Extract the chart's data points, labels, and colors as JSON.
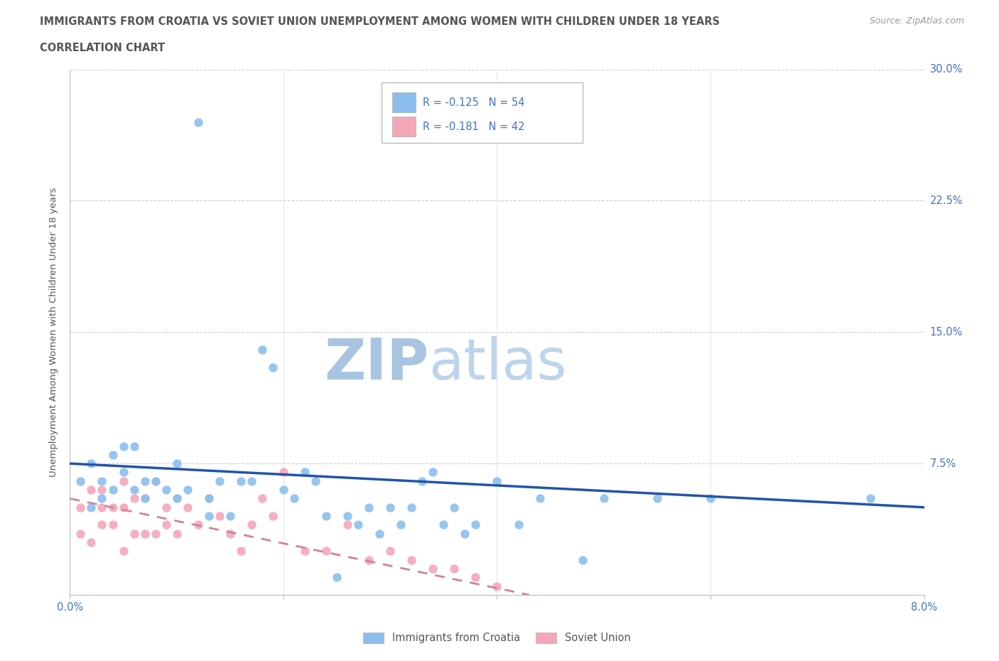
{
  "title_line1": "IMMIGRANTS FROM CROATIA VS SOVIET UNION UNEMPLOYMENT AMONG WOMEN WITH CHILDREN UNDER 18 YEARS",
  "title_line2": "CORRELATION CHART",
  "source": "Source: ZipAtlas.com",
  "ylabel": "Unemployment Among Women with Children Under 18 years",
  "croatia_color": "#8BBFED",
  "soviet_color": "#F4A7B9",
  "trendline_croatia_color": "#2255AA",
  "trendline_soviet_color": "#D4809A",
  "legend_label_croatia": "R = -0.125   N = 54",
  "legend_label_soviet": "R = -0.181   N = 42",
  "legend_label_bottom_croatia": "Immigrants from Croatia",
  "legend_label_bottom_soviet": "Soviet Union",
  "watermark_zip": "ZIP",
  "watermark_atlas": "atlas",
  "watermark_color": "#C8D8EE",
  "background_color": "#FFFFFF",
  "title_color": "#555555",
  "axis_color": "#4472C4",
  "xlim": [
    0.0,
    0.08
  ],
  "ylim": [
    0.0,
    0.3
  ],
  "croatia_x": [
    0.001,
    0.002,
    0.002,
    0.003,
    0.003,
    0.004,
    0.004,
    0.005,
    0.005,
    0.006,
    0.006,
    0.007,
    0.007,
    0.008,
    0.009,
    0.01,
    0.01,
    0.011,
    0.012,
    0.013,
    0.013,
    0.014,
    0.015,
    0.016,
    0.017,
    0.018,
    0.019,
    0.02,
    0.021,
    0.022,
    0.023,
    0.024,
    0.025,
    0.026,
    0.027,
    0.028,
    0.029,
    0.03,
    0.031,
    0.032,
    0.033,
    0.034,
    0.035,
    0.036,
    0.037,
    0.038,
    0.04,
    0.042,
    0.044,
    0.05,
    0.055,
    0.06,
    0.075,
    0.048
  ],
  "croatia_y": [
    0.065,
    0.075,
    0.05,
    0.065,
    0.055,
    0.06,
    0.08,
    0.07,
    0.085,
    0.06,
    0.085,
    0.065,
    0.055,
    0.065,
    0.06,
    0.075,
    0.055,
    0.06,
    0.27,
    0.055,
    0.045,
    0.065,
    0.045,
    0.065,
    0.065,
    0.14,
    0.13,
    0.06,
    0.055,
    0.07,
    0.065,
    0.045,
    0.01,
    0.045,
    0.04,
    0.05,
    0.035,
    0.05,
    0.04,
    0.05,
    0.065,
    0.07,
    0.04,
    0.05,
    0.035,
    0.04,
    0.065,
    0.04,
    0.055,
    0.055,
    0.055,
    0.055,
    0.055,
    0.02
  ],
  "soviet_x": [
    0.001,
    0.001,
    0.002,
    0.002,
    0.003,
    0.003,
    0.003,
    0.004,
    0.004,
    0.005,
    0.005,
    0.005,
    0.006,
    0.006,
    0.007,
    0.007,
    0.008,
    0.008,
    0.009,
    0.009,
    0.01,
    0.01,
    0.011,
    0.012,
    0.013,
    0.014,
    0.015,
    0.016,
    0.017,
    0.018,
    0.019,
    0.02,
    0.022,
    0.024,
    0.026,
    0.028,
    0.03,
    0.032,
    0.034,
    0.036,
    0.038,
    0.04
  ],
  "soviet_y": [
    0.05,
    0.035,
    0.06,
    0.03,
    0.05,
    0.04,
    0.06,
    0.04,
    0.05,
    0.065,
    0.05,
    0.025,
    0.055,
    0.035,
    0.055,
    0.035,
    0.065,
    0.035,
    0.05,
    0.04,
    0.055,
    0.035,
    0.05,
    0.04,
    0.055,
    0.045,
    0.035,
    0.025,
    0.04,
    0.055,
    0.045,
    0.07,
    0.025,
    0.025,
    0.04,
    0.02,
    0.025,
    0.02,
    0.015,
    0.015,
    0.01,
    0.005
  ],
  "croatia_trend_x": [
    0.0,
    0.08
  ],
  "croatia_trend_y": [
    0.075,
    0.05
  ],
  "soviet_trend_x": [
    0.0,
    0.043
  ],
  "soviet_trend_y": [
    0.055,
    0.0
  ],
  "ytick_values": [
    0.075,
    0.15,
    0.225,
    0.3
  ],
  "ytick_labels": [
    "7.5%",
    "15.0%",
    "22.5%",
    "30.0%"
  ],
  "xtick_values": [
    0.0,
    0.02,
    0.04,
    0.06,
    0.08
  ],
  "xtick_labels": [
    "0.0%",
    "",
    "",
    "",
    "8.0%"
  ]
}
